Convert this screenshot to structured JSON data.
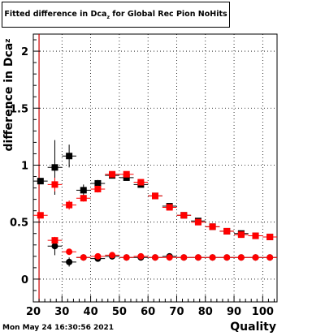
{
  "title": {
    "prefix": "Fitted difference in Dca",
    "sub": "z",
    "suffix": " for Global Rec Pion NoHits"
  },
  "footer": {
    "date": "Mon May 24 16:30:56 2021"
  },
  "chart_data": {
    "type": "scatter",
    "title": "Fitted difference in Dca_z for Global Rec Pion NoHits",
    "xlabel": "Quality",
    "ylabel": "difference in Dca",
    "ylabel_sub": "z",
    "xlim": [
      20,
      105
    ],
    "ylim": [
      -0.2,
      2.15
    ],
    "xticks": [
      20,
      30,
      40,
      50,
      60,
      70,
      80,
      90,
      100
    ],
    "yticks": [
      0,
      0.5,
      1,
      1.5,
      2
    ],
    "grid": true,
    "reference_line_x": 22,
    "colors": {
      "series_black": "#000000",
      "series_red": "#ff0000",
      "ref_line": "#cc0000"
    },
    "series": [
      {
        "color": "black",
        "points": [
          {
            "x": 22.5,
            "y": 0.86,
            "ey": 0.02
          },
          {
            "x": 27.5,
            "y": 0.98,
            "ey": 0.24
          },
          {
            "x": 32.5,
            "y": 1.08,
            "ey": 0.1
          },
          {
            "x": 37.5,
            "y": 0.78,
            "ey": 0.05
          },
          {
            "x": 42.5,
            "y": 0.84,
            "ey": 0.03
          },
          {
            "x": 47.5,
            "y": 0.91,
            "ey": 0.02
          },
          {
            "x": 52.5,
            "y": 0.89,
            "ey": 0.02
          },
          {
            "x": 57.5,
            "y": 0.83,
            "ey": 0.02
          },
          {
            "x": 62.5,
            "y": 0.73,
            "ey": 0.015
          },
          {
            "x": 67.5,
            "y": 0.64,
            "ey": 0.015
          },
          {
            "x": 72.5,
            "y": 0.56,
            "ey": 0.01
          },
          {
            "x": 77.5,
            "y": 0.51,
            "ey": 0.01
          },
          {
            "x": 82.5,
            "y": 0.46,
            "ey": 0.01
          },
          {
            "x": 87.5,
            "y": 0.42,
            "ey": 0.01
          },
          {
            "x": 92.5,
            "y": 0.4,
            "ey": 0.01
          },
          {
            "x": 97.5,
            "y": 0.38,
            "ey": 0.01
          },
          {
            "x": 102.5,
            "y": 0.37,
            "ey": 0.01
          },
          {
            "x": 27.5,
            "y": 0.29,
            "ey": 0.08
          },
          {
            "x": 32.5,
            "y": 0.15,
            "ey": 0.04
          },
          {
            "x": 37.5,
            "y": 0.19,
            "ey": 0.02
          },
          {
            "x": 42.5,
            "y": 0.18,
            "ey": 0.02
          },
          {
            "x": 47.5,
            "y": 0.2,
            "ey": 0.02
          },
          {
            "x": 52.5,
            "y": 0.19,
            "ey": 0.01
          },
          {
            "x": 57.5,
            "y": 0.19,
            "ey": 0.01
          },
          {
            "x": 62.5,
            "y": 0.19,
            "ey": 0.01
          },
          {
            "x": 67.5,
            "y": 0.2,
            "ey": 0.01
          },
          {
            "x": 72.5,
            "y": 0.19,
            "ey": 0.01
          },
          {
            "x": 77.5,
            "y": 0.19,
            "ey": 0.01
          },
          {
            "x": 82.5,
            "y": 0.19,
            "ey": 0.01
          },
          {
            "x": 87.5,
            "y": 0.19,
            "ey": 0.01
          },
          {
            "x": 92.5,
            "y": 0.19,
            "ey": 0.01
          },
          {
            "x": 97.5,
            "y": 0.19,
            "ey": 0.01
          },
          {
            "x": 102.5,
            "y": 0.19,
            "ey": 0.01
          }
        ]
      },
      {
        "color": "red",
        "points": [
          {
            "x": 22.5,
            "y": 0.56,
            "ey": 0.02
          },
          {
            "x": 27.5,
            "y": 0.83,
            "ey": 0.06
          },
          {
            "x": 32.5,
            "y": 0.65,
            "ey": 0.04
          },
          {
            "x": 37.5,
            "y": 0.71,
            "ey": 0.03
          },
          {
            "x": 42.5,
            "y": 0.79,
            "ey": 0.03
          },
          {
            "x": 47.5,
            "y": 0.92,
            "ey": 0.02
          },
          {
            "x": 52.5,
            "y": 0.92,
            "ey": 0.02
          },
          {
            "x": 57.5,
            "y": 0.85,
            "ey": 0.02
          },
          {
            "x": 62.5,
            "y": 0.73,
            "ey": 0.015
          },
          {
            "x": 67.5,
            "y": 0.63,
            "ey": 0.015
          },
          {
            "x": 72.5,
            "y": 0.56,
            "ey": 0.01
          },
          {
            "x": 77.5,
            "y": 0.5,
            "ey": 0.01
          },
          {
            "x": 82.5,
            "y": 0.46,
            "ey": 0.01
          },
          {
            "x": 87.5,
            "y": 0.42,
            "ey": 0.01
          },
          {
            "x": 92.5,
            "y": 0.39,
            "ey": 0.01
          },
          {
            "x": 97.5,
            "y": 0.38,
            "ey": 0.01
          },
          {
            "x": 102.5,
            "y": 0.37,
            "ey": 0.01
          },
          {
            "x": 27.5,
            "y": 0.34,
            "ey": 0.03
          },
          {
            "x": 32.5,
            "y": 0.24,
            "ey": 0.02
          },
          {
            "x": 37.5,
            "y": 0.19,
            "ey": 0.01
          },
          {
            "x": 42.5,
            "y": 0.2,
            "ey": 0.01
          },
          {
            "x": 47.5,
            "y": 0.21,
            "ey": 0.01
          },
          {
            "x": 52.5,
            "y": 0.19,
            "ey": 0.01
          },
          {
            "x": 57.5,
            "y": 0.2,
            "ey": 0.01
          },
          {
            "x": 62.5,
            "y": 0.19,
            "ey": 0.01
          },
          {
            "x": 67.5,
            "y": 0.19,
            "ey": 0.01
          },
          {
            "x": 72.5,
            "y": 0.19,
            "ey": 0.01
          },
          {
            "x": 77.5,
            "y": 0.19,
            "ey": 0.01
          },
          {
            "x": 82.5,
            "y": 0.19,
            "ey": 0.01
          },
          {
            "x": 87.5,
            "y": 0.19,
            "ey": 0.01
          },
          {
            "x": 92.5,
            "y": 0.19,
            "ey": 0.01
          },
          {
            "x": 97.5,
            "y": 0.19,
            "ey": 0.01
          },
          {
            "x": 102.5,
            "y": 0.19,
            "ey": 0.01
          }
        ]
      }
    ]
  }
}
